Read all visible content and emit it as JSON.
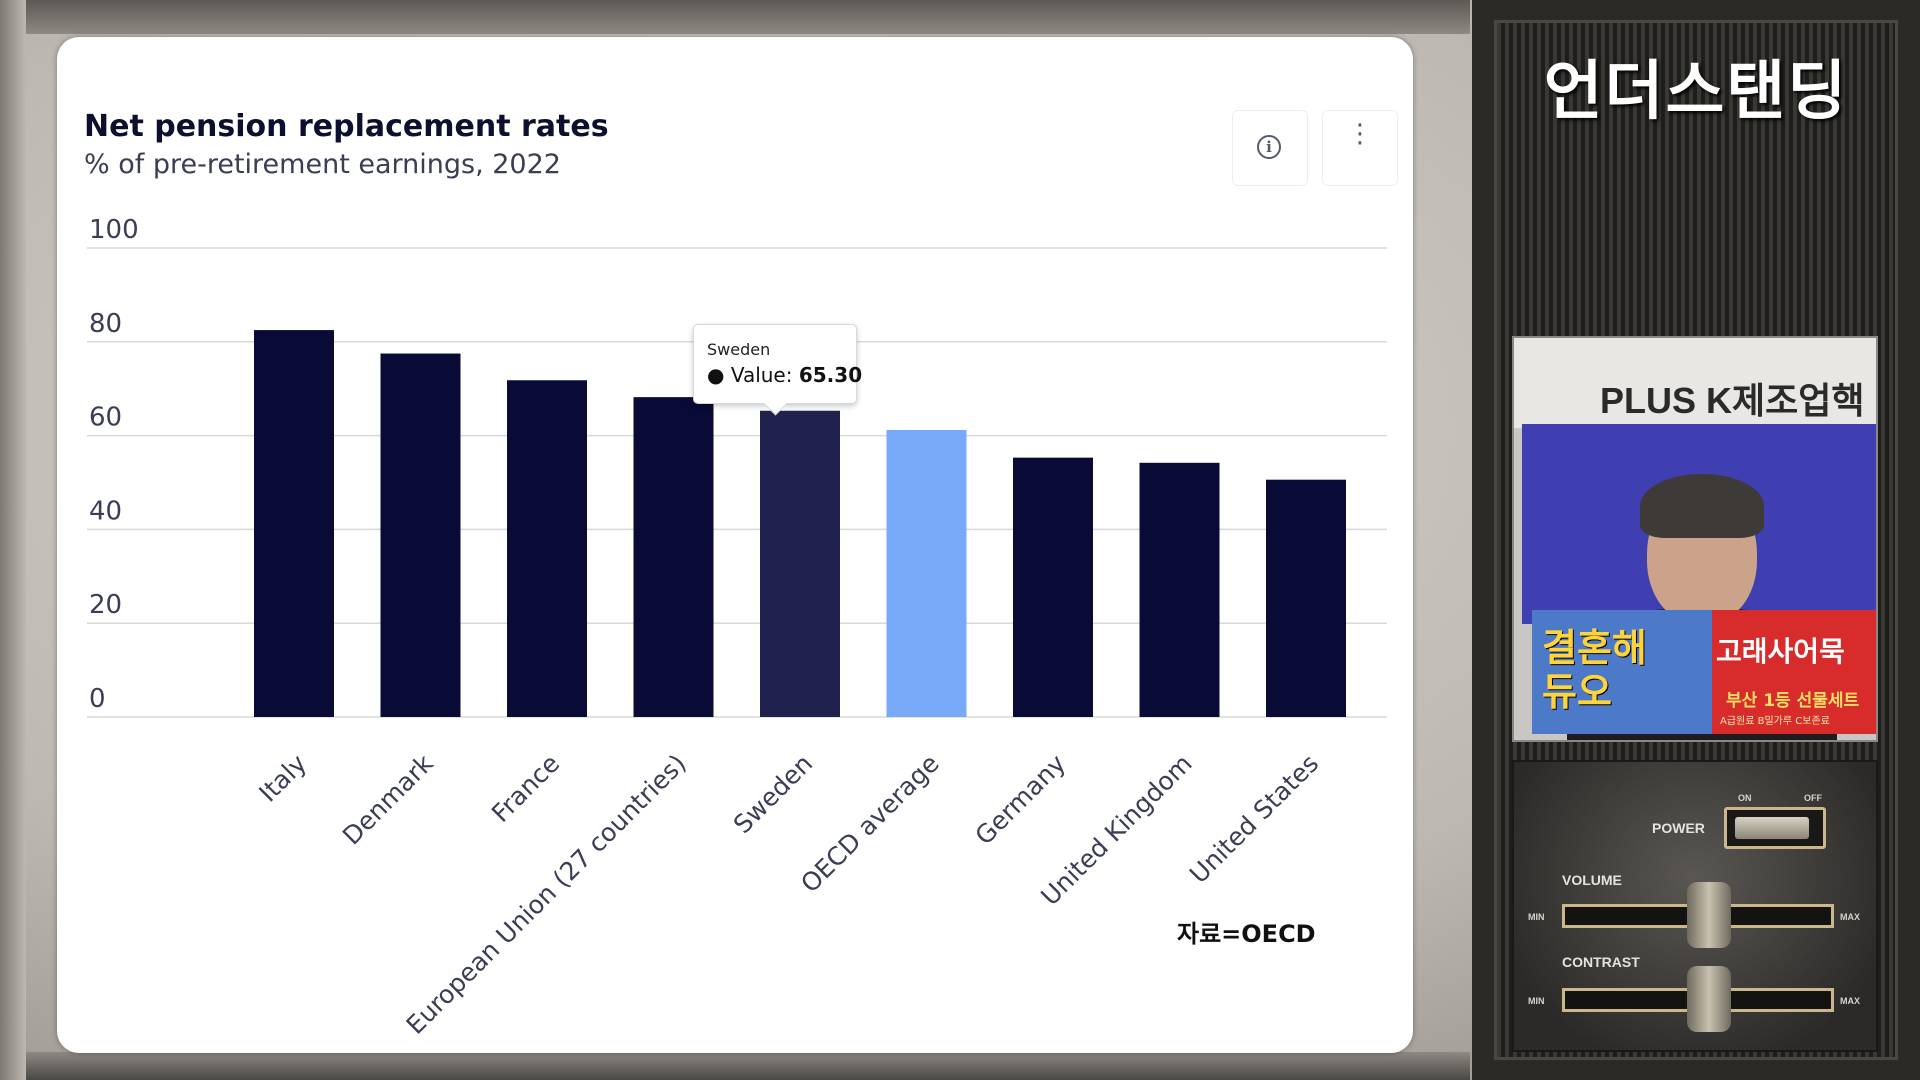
{
  "chart_data": {
    "type": "bar",
    "title": "Net pension replacement rates",
    "subtitle": "% of pre-retirement earnings, 2022",
    "categories": [
      "Italy",
      "Denmark",
      "France",
      "European Union (27 countries)",
      "Sweden",
      "OECD average",
      "Germany",
      "United Kingdom",
      "United States"
    ],
    "values": [
      82.5,
      77.5,
      71.8,
      68.2,
      65.3,
      61.2,
      55.3,
      54.2,
      50.6
    ],
    "highlight": "OECD average",
    "hovered": "Sweden",
    "ylim": [
      0,
      100
    ],
    "yticks": [
      "0",
      "20",
      "40",
      "60",
      "80",
      "100"
    ],
    "grid": true,
    "colors": {
      "bar": "#090a35",
      "hovered": "#20214f",
      "highlight": "#78aaf9",
      "grid": "#d9d9d9"
    }
  },
  "tooltip": {
    "name": "Sweden",
    "bullet": "●",
    "value_label": "Value:",
    "value": "65.30"
  },
  "source_note": "자료=OECD",
  "toolbar": {
    "info_icon": "info-icon",
    "more_icon": "more-vertical-icon",
    "info_glyph": "i",
    "more_glyph": "⋮"
  },
  "side_panel": {
    "channel_name": "언더스탠딩",
    "video_sign": "PLUS K제조업핵",
    "ad_left": [
      "결혼해",
      "듀오"
    ],
    "ad_right_title": "고래사어묵",
    "ad_right_sub": "부산 1등 선물세트",
    "ad_right_foot": "A급원료 B밀가루 C보존료",
    "controls": {
      "power": "POWER",
      "on": "ON",
      "off": "OFF",
      "volume": "VOLUME",
      "contrast": "CONTRAST",
      "min": "MIN",
      "max": "MAX",
      "volume_level": 0.55,
      "contrast_level": 0.55
    }
  }
}
